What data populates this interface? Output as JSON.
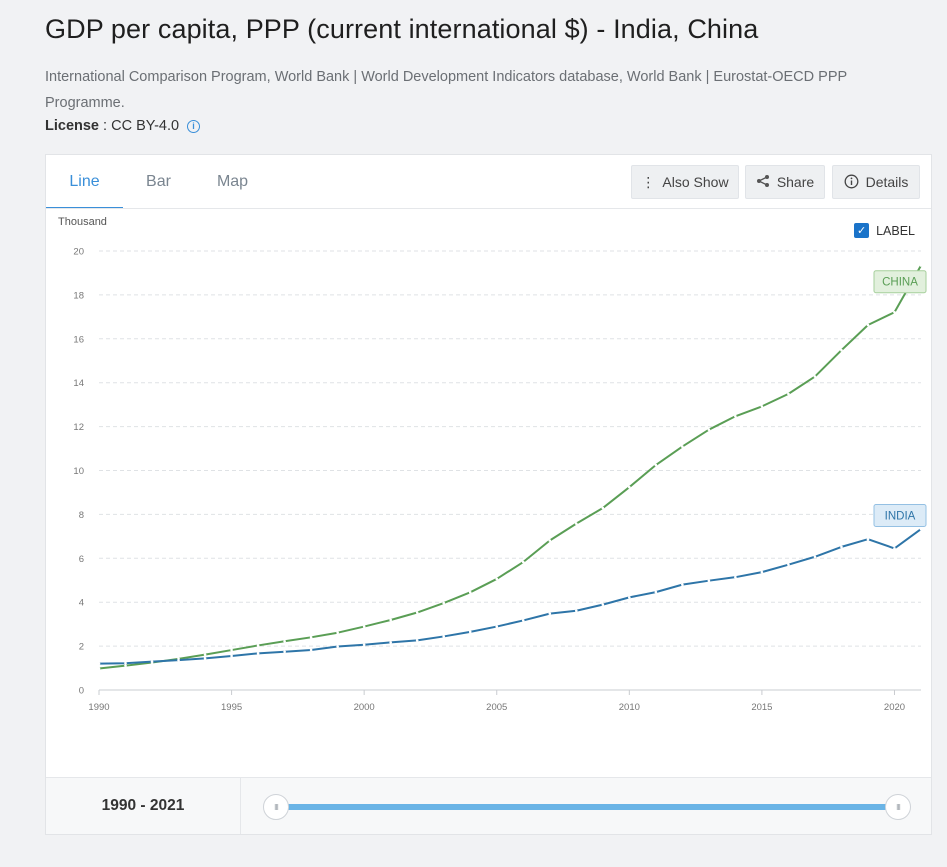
{
  "header": {
    "title": "GDP per capita, PPP (current international $) - India, China",
    "source": "International Comparison Program, World Bank | World Development Indicators database, World Bank | Eurostat-OECD PPP Programme.",
    "license_label": "License",
    "license_value": "CC BY-4.0",
    "license_sep": " : ",
    "info_icon": "i"
  },
  "tabs": [
    {
      "label": "Line",
      "active": true
    },
    {
      "label": "Bar",
      "active": false
    },
    {
      "label": "Map",
      "active": false
    }
  ],
  "toolbar": {
    "also_show": "Also Show",
    "share": "Share",
    "details": "Details",
    "also_show_icon": "⋮",
    "share_icon": "share-icon",
    "details_icon": "info-icon"
  },
  "label_toggle": {
    "text": "LABEL",
    "checked": true
  },
  "colors": {
    "china": "#5a9e55",
    "india": "#2e75a8",
    "accent": "#3a8fd9"
  },
  "chart_data": {
    "type": "line",
    "ylabel": "Thousand",
    "ylim": [
      0,
      20
    ],
    "yticks": [
      0,
      2,
      4,
      6,
      8,
      10,
      12,
      14,
      16,
      18,
      20
    ],
    "xlim": [
      1990,
      2021
    ],
    "xticks": [
      1990,
      1995,
      2000,
      2005,
      2010,
      2015,
      2020
    ],
    "grid": true,
    "x": [
      1990,
      1991,
      1992,
      1993,
      1994,
      1995,
      1996,
      1997,
      1998,
      1999,
      2000,
      2001,
      2002,
      2003,
      2004,
      2005,
      2006,
      2007,
      2008,
      2009,
      2010,
      2011,
      2012,
      2013,
      2014,
      2015,
      2016,
      2017,
      2018,
      2019,
      2020,
      2021
    ],
    "series": [
      {
        "name": "CHINA",
        "values": [
          0.98,
          1.11,
          1.25,
          1.42,
          1.61,
          1.82,
          2.03,
          2.22,
          2.4,
          2.61,
          2.89,
          3.19,
          3.53,
          3.96,
          4.45,
          5.06,
          5.83,
          6.81,
          7.58,
          8.29,
          9.24,
          10.25,
          11.09,
          11.86,
          12.47,
          12.92,
          13.49,
          14.28,
          15.48,
          16.63,
          17.21,
          19.34
        ]
      },
      {
        "name": "INDIA",
        "values": [
          1.2,
          1.22,
          1.29,
          1.36,
          1.44,
          1.55,
          1.67,
          1.74,
          1.82,
          1.98,
          2.06,
          2.17,
          2.26,
          2.44,
          2.65,
          2.89,
          3.17,
          3.48,
          3.61,
          3.89,
          4.22,
          4.46,
          4.8,
          4.98,
          5.14,
          5.37,
          5.71,
          6.07,
          6.52,
          6.87,
          6.45,
          7.33
        ]
      }
    ]
  },
  "footer": {
    "range_label": "1990 - 2021",
    "handle_glyph": "III"
  }
}
